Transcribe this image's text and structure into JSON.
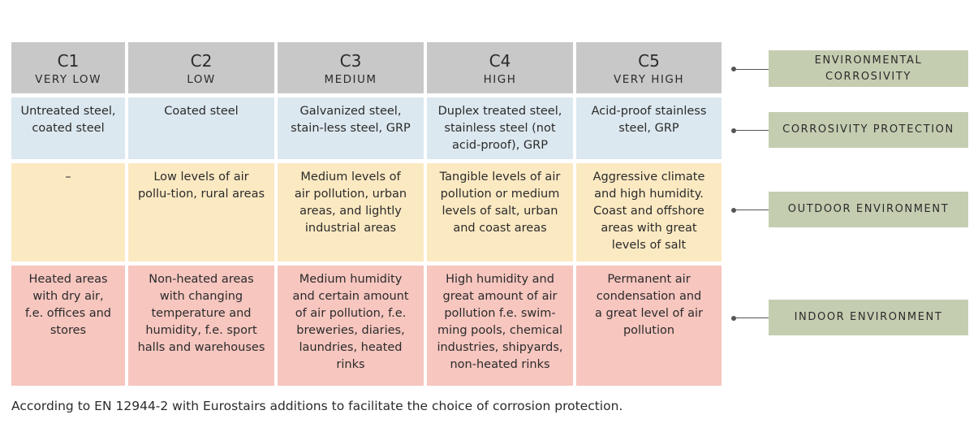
{
  "table": {
    "header": [
      {
        "code": "C1",
        "level": "VERY LOW"
      },
      {
        "code": "C2",
        "level": "LOW"
      },
      {
        "code": "C3",
        "level": "MEDIUM"
      },
      {
        "code": "C4",
        "level": "HIGH"
      },
      {
        "code": "C5",
        "level": "VERY HIGH"
      }
    ],
    "rows": [
      [
        [
          "Untreated steel,",
          "coated steel"
        ],
        [
          "Coated steel"
        ],
        [
          "Galvanized steel,",
          "stain-less steel, GRP"
        ],
        [
          "Duplex treated steel,",
          "stainless steel (not",
          "acid-proof), GRP"
        ],
        [
          "Acid-proof stainless",
          "steel, GRP"
        ]
      ],
      [
        [
          "–"
        ],
        [
          "Low levels of air",
          "pollu-tion, rural areas"
        ],
        [
          "Medium levels of",
          "air pollution, urban",
          "areas, and lightly",
          "industrial areas"
        ],
        [
          "Tangible levels of air",
          "pollution or medium",
          "levels of salt, urban",
          "and coast areas"
        ],
        [
          "Aggressive climate",
          "and high humidity.",
          "Coast and offshore",
          "areas with great",
          "levels of salt"
        ]
      ],
      [
        [
          "Heated areas",
          "with dry air,",
          "f.e. offices and",
          "stores"
        ],
        [
          "Non-heated areas",
          "with changing",
          "temperature and",
          "humidity, f.e. sport",
          "halls and warehouses"
        ],
        [
          "Medium humidity",
          "and certain amount",
          "of air pollution, f.e.",
          "breweries, diaries,",
          "laundries, heated",
          "rinks"
        ],
        [
          "High humidity and",
          "great amount of air",
          "pollution f.e. swim-",
          "ming pools, chemical",
          "industries, shipyards,",
          "non-heated rinks"
        ],
        [
          "Permanent air",
          "condensation and",
          "a great level of air",
          "pollution"
        ]
      ]
    ]
  },
  "labels": [
    [
      "ENVIRONMENTAL",
      "CORROSIVITY"
    ],
    [
      "CORROSIVITY PROTECTION"
    ],
    [
      "OUTDOOR ENVIRONMENT"
    ],
    [
      "INDOOR ENVIRONMENT"
    ]
  ],
  "footnote": "According to EN 12944-2 with Eurostairs additions to facilitate the choice of corrosion protection."
}
